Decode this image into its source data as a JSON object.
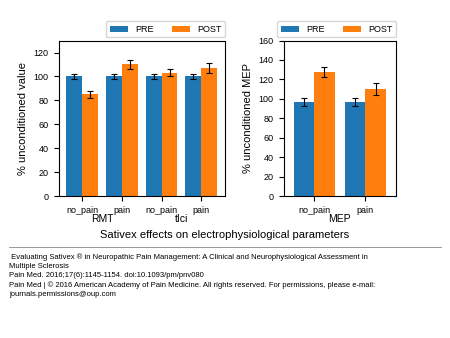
{
  "xlabel": "Sativex effects on electrophysiological parameters",
  "annotations": [
    " Evaluating Sativex ® in Neuropathic Pain Management: A Clinical and Neurophysiological Assessment in\nMultiple Sclerosis\nPain Med. 2016;17(6):1145-1154. doi:10.1093/pm/pnv080\nPain Med | © 2016 American Academy of Pain Medicine. All rights reserved. For permissions, please e-mail:\njournals.permissions@oup.com"
  ],
  "chart_data": [
    {
      "type": "bar",
      "ylabel": "% unconditioned value",
      "categories": [
        "no_pain",
        "pain",
        "no_pain",
        "pain"
      ],
      "group_labels": [
        "RMT",
        "tIci"
      ],
      "series": [
        {
          "name": "PRE",
          "values": [
            100,
            100,
            100,
            100
          ],
          "errors": [
            2,
            2,
            2,
            2
          ]
        },
        {
          "name": "POST",
          "values": [
            85,
            110,
            103,
            107
          ],
          "errors": [
            3,
            4,
            3,
            4
          ]
        }
      ],
      "ylim": [
        0,
        130
      ],
      "yticks": [
        0,
        20,
        40,
        60,
        80,
        100,
        120
      ],
      "legend": "upper right"
    },
    {
      "type": "bar",
      "ylabel": "% unconditioned MEP",
      "categories": [
        "no_pain",
        "pain"
      ],
      "group_labels": [
        "MEP"
      ],
      "series": [
        {
          "name": "PRE",
          "values": [
            97,
            97
          ],
          "errors": [
            4,
            4
          ]
        },
        {
          "name": "POST",
          "values": [
            128,
            110
          ],
          "errors": [
            5,
            6
          ]
        }
      ],
      "ylim": [
        0,
        160
      ],
      "yticks": [
        0,
        20,
        40,
        60,
        80,
        100,
        120,
        140,
        160
      ],
      "legend": "upper right"
    }
  ]
}
